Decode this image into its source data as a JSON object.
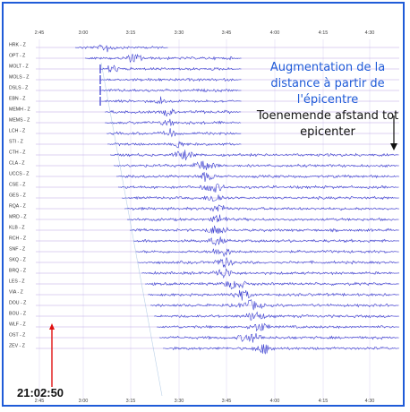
{
  "time_ticks": [
    "2:45",
    "3:00",
    "3:15",
    "3:30",
    "3:45",
    "4:00",
    "4:15",
    "4:30"
  ],
  "stations": [
    "HRK - Z",
    "OPT - Z",
    "MOLT - Z",
    "MOLS - Z",
    "DSLS - Z",
    "EBN - Z",
    "MEMH - Z",
    "MEMS - Z",
    "LCH - Z",
    "STI - Z",
    "CTH - Z",
    "CLA - Z",
    "UCCS - Z",
    "CSE - Z",
    "GES - Z",
    "RQA - Z",
    "MRD - Z",
    "KLB - Z",
    "RCH - Z",
    "SNF - Z",
    "SKQ - Z",
    "BRQ - Z",
    "LES - Z",
    "VIA - Z",
    "DOU - Z",
    "BOU - Z",
    "WLF - Z",
    "OST - Z",
    "ZEV - Z"
  ],
  "annotation": {
    "french": "Augmentation de la distance à partir de l'épicentre",
    "dutch": "Toenemende afstand tot epicenter"
  },
  "onset_time": "21:02:50",
  "colors": {
    "frame": "#1f5bd8",
    "trace": "#1a1fc8",
    "marker": "#e01010",
    "grid": "#b9a6e6",
    "text_blue": "#1f5bd8"
  }
}
